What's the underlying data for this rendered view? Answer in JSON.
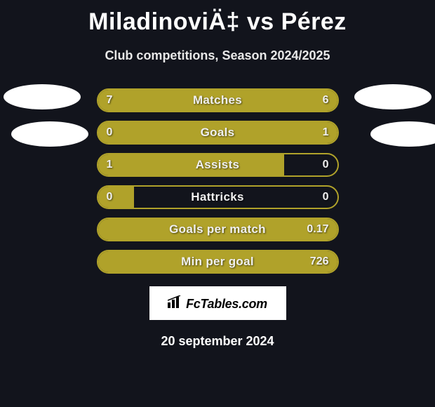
{
  "title": "MiladinoviÄ‡ vs Pérez",
  "subtitle": "Club competitions, Season 2024/2025",
  "date": "20 september 2024",
  "logo": "FcTables.com",
  "colors": {
    "bar_fill": "#b0a22a",
    "bar_border": "#b0a22a",
    "background": "#12141c",
    "badge": "#ffffff"
  },
  "stats": [
    {
      "label": "Matches",
      "left_value": "7",
      "right_value": "6",
      "left_fill_pct": 54,
      "right_fill_pct": 46
    },
    {
      "label": "Goals",
      "left_value": "0",
      "right_value": "1",
      "left_fill_pct": 18,
      "right_fill_pct": 100
    },
    {
      "label": "Assists",
      "left_value": "1",
      "right_value": "0",
      "left_fill_pct": 78,
      "right_fill_pct": 0
    },
    {
      "label": "Hattricks",
      "left_value": "0",
      "right_value": "0",
      "left_fill_pct": 15,
      "right_fill_pct": 0
    },
    {
      "label": "Goals per match",
      "left_value": "",
      "right_value": "0.17",
      "left_fill_pct": 0,
      "right_fill_pct": 100
    },
    {
      "label": "Min per goal",
      "left_value": "",
      "right_value": "726",
      "left_fill_pct": 0,
      "right_fill_pct": 100
    }
  ]
}
